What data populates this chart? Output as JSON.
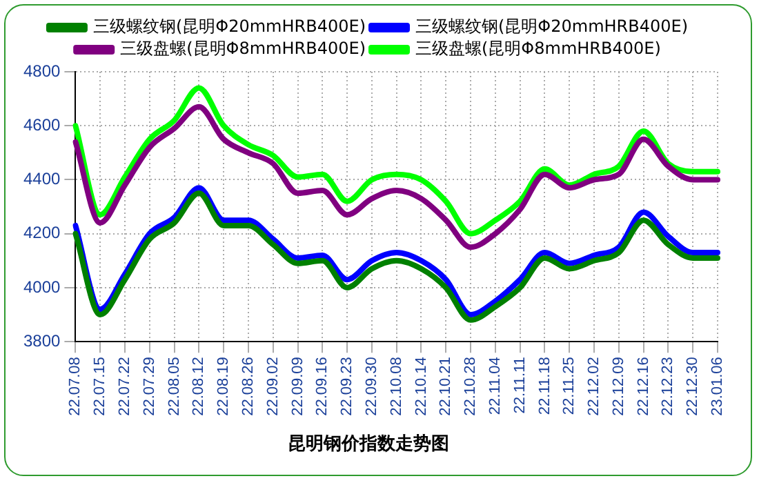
{
  "chart_data": {
    "type": "line",
    "title": "昆明钢价指数走势图",
    "categories": [
      "22.07.08",
      "22.07.15",
      "22.07.22",
      "22.07.29",
      "22.08.05",
      "22.08.12",
      "22.08.19",
      "22.08.26",
      "22.09.02",
      "22.09.09",
      "22.09.16",
      "22.09.23",
      "22.09.30",
      "22.10.08",
      "22.10.14",
      "22.10.21",
      "22.10.28",
      "22.11.04",
      "22.11.11",
      "22.11.18",
      "22.11.25",
      "22.12.02",
      "22.12.09",
      "22.12.16",
      "22.12.23",
      "22.12.30",
      "23.01.06"
    ],
    "series": [
      {
        "name": "三级螺纹钢(昆明Φ20mmHRB400E)",
        "color": "#008000",
        "values": [
          4200,
          3900,
          4030,
          4180,
          4240,
          4350,
          4230,
          4230,
          4160,
          4090,
          4100,
          4000,
          4070,
          4100,
          4070,
          4000,
          3880,
          3930,
          4000,
          4110,
          4070,
          4100,
          4130,
          4250,
          4160,
          4110,
          4110
        ]
      },
      {
        "name": "三级螺纹钢(昆明Φ20mmHRB400E)",
        "color": "#0000ff",
        "values": [
          4230,
          3920,
          4050,
          4200,
          4260,
          4370,
          4250,
          4250,
          4180,
          4110,
          4120,
          4030,
          4100,
          4130,
          4100,
          4030,
          3900,
          3950,
          4030,
          4130,
          4090,
          4120,
          4150,
          4280,
          4190,
          4130,
          4130
        ]
      },
      {
        "name": "三级盘螺(昆明Φ8mmHRB400E)",
        "color": "#800080",
        "values": [
          4540,
          4240,
          4380,
          4520,
          4590,
          4670,
          4550,
          4500,
          4460,
          4350,
          4360,
          4270,
          4330,
          4360,
          4330,
          4250,
          4150,
          4200,
          4290,
          4420,
          4370,
          4400,
          4420,
          4550,
          4450,
          4400,
          4400
        ]
      },
      {
        "name": "三级盘螺(昆明Φ8mmHRB400E)",
        "color": "#00ff00",
        "values": [
          4600,
          4270,
          4410,
          4550,
          4620,
          4740,
          4600,
          4530,
          4490,
          4410,
          4420,
          4320,
          4400,
          4420,
          4400,
          4320,
          4200,
          4250,
          4320,
          4440,
          4380,
          4420,
          4450,
          4580,
          4460,
          4430,
          4430
        ]
      }
    ],
    "ylim": [
      3800,
      4800
    ],
    "yticks": [
      3800,
      4000,
      4200,
      4400,
      4600,
      4800
    ],
    "grid": true,
    "legend": "top",
    "marker": "none",
    "line_style": "solid"
  }
}
